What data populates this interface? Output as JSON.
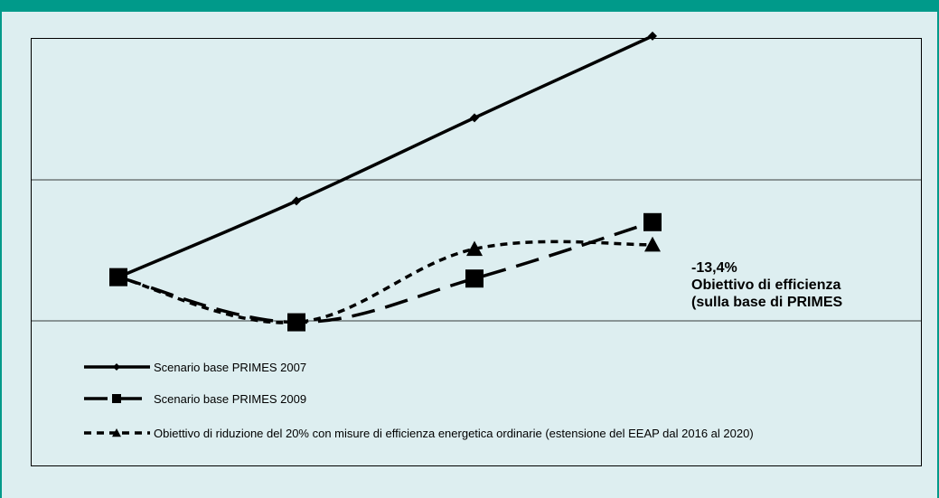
{
  "colors": {
    "background": "#ddeef0",
    "accent": "#009a8a",
    "series": "#000000"
  },
  "annotation": {
    "line1": "-13,4%",
    "line2": "Obiettivo  di efficienza",
    "line3": "(sulla base di PRIMES"
  },
  "chart_data": {
    "type": "line",
    "grid": true,
    "legend_position": "bottom-left",
    "x": [
      1,
      2,
      3,
      4
    ],
    "ylim": [
      0,
      3
    ],
    "series": [
      {
        "name": "Scenario base PRIMES 2007",
        "marker": "diamond",
        "dash": "solid",
        "values": [
          1.31,
          1.85,
          2.44,
          3.02
        ]
      },
      {
        "name": "Scenario base PRIMES 2009",
        "marker": "square",
        "dash": "long-dash",
        "values": [
          1.31,
          0.99,
          1.3,
          1.7
        ]
      },
      {
        "name": "Obiettivo di riduzione del 20% con misure di efficienza energetica ordinarie (estensione del EEAP dal 2016 al 2020)",
        "marker": "triangle",
        "dash": "short-dash",
        "values": [
          1.31,
          0.99,
          1.51,
          1.54
        ]
      }
    ]
  }
}
